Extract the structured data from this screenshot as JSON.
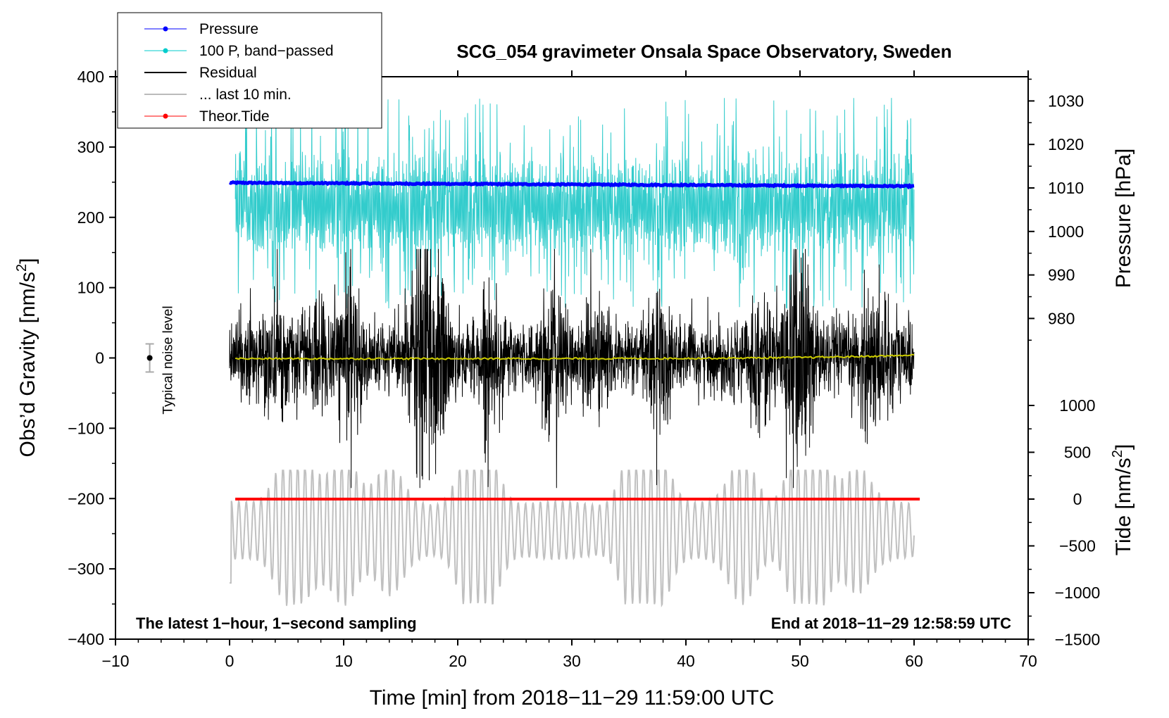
{
  "chart_data": {
    "type": "line",
    "title": "SCG_054 gravimeter Onsala Space Observatory, Sweden",
    "xlabel": "Time [min] from 2018−11−29 11:59:00 UTC",
    "ylabel_left_prefix": "Obs’d Gravity [nm/s",
    "ylabel_left_sup": "2",
    "ylabel_left_suffix": "]",
    "ylabel_right_pressure": "Pressure [hPa]",
    "ylabel_right_tide_prefix": "Tide [nm/s",
    "ylabel_right_tide_sup": "2",
    "ylabel_right_tide_suffix": "]",
    "xlim": [
      -10,
      70
    ],
    "ylim": [
      -400,
      400
    ],
    "x_ticks": [
      -10,
      0,
      10,
      20,
      30,
      40,
      50,
      60,
      70
    ],
    "x_tick_labels": [
      "−10",
      "0",
      "10",
      "20",
      "30",
      "40",
      "50",
      "60",
      "70"
    ],
    "y_ticks": [
      400,
      300,
      200,
      100,
      0,
      -100,
      -200,
      -300,
      -400
    ],
    "y_tick_labels": [
      "400",
      "300",
      "200",
      "100",
      "0",
      "−100",
      "−200",
      "−300",
      "−400"
    ],
    "pressure_ticks": [
      1030,
      1020,
      1010,
      1000,
      990,
      980
    ],
    "pressure_tick_labels": [
      "1030",
      "1020",
      "1010",
      "1000",
      "990",
      "980"
    ],
    "tide_ticks": [
      1000,
      500,
      0,
      -500,
      -1000,
      -1500
    ],
    "tide_tick_labels": [
      "1000",
      "500",
      "0",
      "−500",
      "−1000",
      "−1500"
    ],
    "legend": {
      "placement": "top-left",
      "entries": [
        {
          "label": "Pressure",
          "color": "#0000ff",
          "marker": true
        },
        {
          "label": "100 P, band−passed",
          "color": "#00cccc",
          "marker": true
        },
        {
          "label": "Residual",
          "color": "#000000",
          "marker": false
        },
        {
          "label": "... last 10 min.",
          "color": "#bbbbbb",
          "marker": false
        },
        {
          "label": "Theor.Tide",
          "color": "#ff0000",
          "marker": true
        }
      ]
    },
    "annotations": {
      "bottom_left": "The latest 1−hour, 1−second sampling",
      "bottom_right": "End at 2018−11−29 12:58:59 UTC",
      "noise_label": "Typical noise level"
    },
    "noise_bar": {
      "x": -7,
      "center": 0,
      "half_range": 20
    },
    "series": [
      {
        "name": "Pressure",
        "axis": "pressure_hPa",
        "color": "#0000ff",
        "x_range": [
          0,
          60
        ],
        "start": 1011.2,
        "end": 1010.4,
        "jitter": 0.3
      },
      {
        "name": "100 P, band-passed",
        "axis": "gravity_nm_s2",
        "color": "#33cccc",
        "x_range": [
          0.5,
          60
        ],
        "mean": 215,
        "typical_min": 120,
        "peak_max": 370
      },
      {
        "name": "Residual",
        "axis": "gravity_nm_s2",
        "color": "#000000",
        "x_range": [
          0,
          60
        ],
        "mean": 0,
        "typical_amplitude": 60,
        "peak_max": 155,
        "peak_min": -185
      },
      {
        "name": "Residual (smoothed)",
        "axis": "gravity_nm_s2",
        "color": "#cccc00",
        "x_range": [
          0.5,
          60
        ],
        "start": -1,
        "end": 4
      },
      {
        "name": "... last 10 min.",
        "axis": "gravity_nm_s2",
        "color": "#c0c0c0",
        "x_range": [
          0,
          60
        ],
        "mean": -245,
        "peak_max": -160,
        "peak_min": -378
      },
      {
        "name": "Theor.Tide",
        "axis": "tide_nm_s2",
        "color": "#ff0000",
        "x_range": [
          0.5,
          60.5
        ],
        "start": 0,
        "end": 0
      }
    ]
  }
}
